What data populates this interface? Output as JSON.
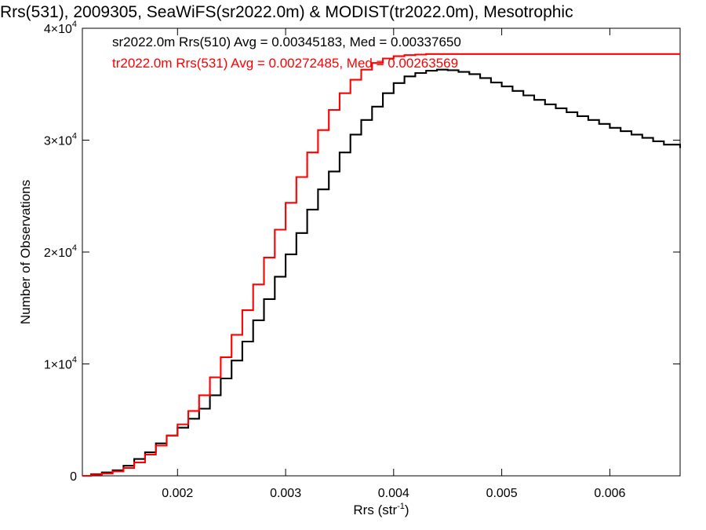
{
  "chart_data": {
    "type": "histogram-step",
    "title": "Rrs(531), 2009305, SeaWiFS(sr2022.0m) & MODIST(tr2022.0m), Mesotrophic",
    "xlabel": "Rrs (str",
    "xlabel_sup": "-1",
    "xlabel_close": ")",
    "ylabel": "Number of Observations",
    "xlim": [
      0.00112,
      0.00665
    ],
    "ylim": [
      0,
      40000
    ],
    "grid": false,
    "x_ticks": [
      {
        "value": 0.002,
        "label": "0.002"
      },
      {
        "value": 0.003,
        "label": "0.003"
      },
      {
        "value": 0.004,
        "label": "0.004"
      },
      {
        "value": 0.005,
        "label": "0.005"
      },
      {
        "value": 0.006,
        "label": "0.006"
      }
    ],
    "y_ticks": [
      {
        "value": 0,
        "mant": "0",
        "exp": ""
      },
      {
        "value": 10000,
        "mant": "1×10",
        "exp": "4"
      },
      {
        "value": 20000,
        "mant": "2×10",
        "exp": "4"
      },
      {
        "value": 30000,
        "mant": "3×10",
        "exp": "4"
      },
      {
        "value": 40000,
        "mant": "4×10",
        "exp": "4"
      }
    ],
    "legend": [
      {
        "text": "sr2022.0m Rrs(510) Avg = 0.00345183, Med = 0.00337650",
        "color": "#000000"
      },
      {
        "text": "tr2022.0m Rrs(531) Avg = 0.00272485, Med = 0.00263569",
        "color": "#ff0000"
      }
    ],
    "series": [
      {
        "color": "#000000",
        "points": [
          [
            0.00112,
            0
          ],
          [
            0.0012,
            150
          ],
          [
            0.0013,
            300
          ],
          [
            0.0014,
            500
          ],
          [
            0.0015,
            900
          ],
          [
            0.0016,
            1500
          ],
          [
            0.0017,
            2100
          ],
          [
            0.0018,
            2900
          ],
          [
            0.0019,
            3600
          ],
          [
            0.002,
            4300
          ],
          [
            0.0021,
            5100
          ],
          [
            0.0022,
            6000
          ],
          [
            0.0023,
            7200
          ],
          [
            0.0024,
            8700
          ],
          [
            0.0025,
            10300
          ],
          [
            0.0026,
            12000
          ],
          [
            0.0027,
            13900
          ],
          [
            0.0028,
            15800
          ],
          [
            0.0029,
            17800
          ],
          [
            0.003,
            19800
          ],
          [
            0.0031,
            21700
          ],
          [
            0.0032,
            23800
          ],
          [
            0.0033,
            25600
          ],
          [
            0.0034,
            27200
          ],
          [
            0.0035,
            28900
          ],
          [
            0.0036,
            30500
          ],
          [
            0.0037,
            31800
          ],
          [
            0.0038,
            33000
          ],
          [
            0.0039,
            34200
          ],
          [
            0.004,
            35100
          ],
          [
            0.0041,
            35700
          ],
          [
            0.0042,
            36000
          ],
          [
            0.0043,
            36200
          ],
          [
            0.0044,
            36300
          ],
          [
            0.00443,
            36300
          ],
          [
            0.0045,
            36250
          ],
          [
            0.0046,
            36100
          ],
          [
            0.0047,
            35900
          ],
          [
            0.0048,
            35550
          ],
          [
            0.0049,
            35150
          ],
          [
            0.005,
            34800
          ],
          [
            0.0051,
            34400
          ],
          [
            0.0052,
            34000
          ],
          [
            0.0053,
            33600
          ],
          [
            0.0054,
            33200
          ],
          [
            0.0055,
            32850
          ],
          [
            0.0056,
            32500
          ],
          [
            0.0057,
            32150
          ],
          [
            0.0058,
            31800
          ],
          [
            0.0059,
            31450
          ],
          [
            0.006,
            31100
          ],
          [
            0.0061,
            30800
          ],
          [
            0.0062,
            30500
          ],
          [
            0.0063,
            30200
          ],
          [
            0.0064,
            29900
          ],
          [
            0.0065,
            29600
          ],
          [
            0.00665,
            29300
          ]
        ]
      },
      {
        "color": "#ff0000",
        "points": [
          [
            0.00112,
            0
          ],
          [
            0.0012,
            100
          ],
          [
            0.0013,
            200
          ],
          [
            0.0014,
            400
          ],
          [
            0.0015,
            700
          ],
          [
            0.0016,
            1200
          ],
          [
            0.0017,
            1900
          ],
          [
            0.0018,
            2700
          ],
          [
            0.0019,
            3600
          ],
          [
            0.002,
            4600
          ],
          [
            0.0021,
            5800
          ],
          [
            0.0022,
            7200
          ],
          [
            0.0023,
            8800
          ],
          [
            0.0024,
            10600
          ],
          [
            0.0025,
            12600
          ],
          [
            0.0026,
            14800
          ],
          [
            0.0027,
            17100
          ],
          [
            0.0028,
            19500
          ],
          [
            0.0029,
            22000
          ],
          [
            0.003,
            24400
          ],
          [
            0.0031,
            26700
          ],
          [
            0.0032,
            28900
          ],
          [
            0.0033,
            30900
          ],
          [
            0.0034,
            32700
          ],
          [
            0.0035,
            34200
          ],
          [
            0.0036,
            35400
          ],
          [
            0.0037,
            36300
          ],
          [
            0.0038,
            36900
          ],
          [
            0.0039,
            37300
          ],
          [
            0.004,
            37500
          ],
          [
            0.0041,
            37600
          ],
          [
            0.0042,
            37650
          ],
          [
            0.0043,
            37700
          ],
          [
            0.0044,
            37700
          ],
          [
            0.0045,
            37700
          ],
          [
            0.0046,
            37700
          ],
          [
            0.0047,
            37700
          ],
          [
            0.0048,
            37700
          ],
          [
            0.0049,
            37700
          ],
          [
            0.005,
            37700
          ],
          [
            0.0051,
            37700
          ],
          [
            0.0052,
            37700
          ],
          [
            0.0053,
            37700
          ],
          [
            0.0054,
            37700
          ],
          [
            0.0055,
            37700
          ],
          [
            0.0056,
            37700
          ],
          [
            0.0057,
            37700
          ],
          [
            0.0058,
            37700
          ],
          [
            0.0059,
            37700
          ],
          [
            0.006,
            37700
          ],
          [
            0.0061,
            37700
          ],
          [
            0.0062,
            37700
          ],
          [
            0.0063,
            37700
          ],
          [
            0.0064,
            37700
          ],
          [
            0.0065,
            37700
          ],
          [
            0.00665,
            37700
          ]
        ]
      }
    ]
  }
}
